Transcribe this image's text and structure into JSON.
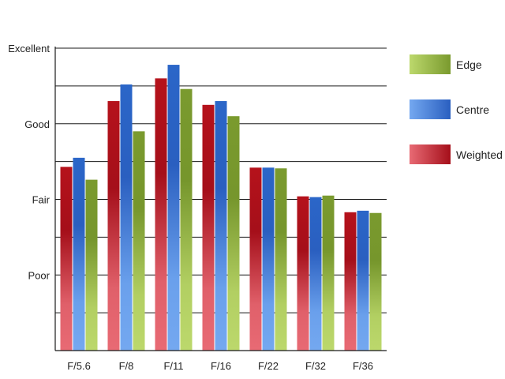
{
  "chart_data": {
    "type": "bar",
    "categories": [
      "F/5.6",
      "F/8",
      "F/11",
      "F/16",
      "F/22",
      "F/32",
      "F/36"
    ],
    "y_tick_labels": [
      "Poor",
      "Fair",
      "Good",
      "Excellent"
    ],
    "y_tick_values": [
      1,
      2,
      3,
      4
    ],
    "ylim": [
      0,
      4
    ],
    "grid": true,
    "legend_position": "right",
    "series": [
      {
        "name": "Weighted",
        "color": "#c0202a",
        "values": [
          2.43,
          3.3,
          3.6,
          3.25,
          2.42,
          2.04,
          1.83
        ]
      },
      {
        "name": "Centre",
        "color": "#2a6acb",
        "values": [
          2.55,
          3.52,
          3.78,
          3.3,
          2.42,
          2.03,
          1.85
        ]
      },
      {
        "name": "Edge",
        "color": "#7a9a2e",
        "values": [
          2.26,
          2.9,
          3.46,
          3.1,
          2.41,
          2.05,
          1.82
        ]
      }
    ],
    "legend": [
      {
        "label": "Edge",
        "color": "#7a9a2e"
      },
      {
        "label": "Centre",
        "color": "#2a6acb"
      },
      {
        "label": "Weighted",
        "color": "#c0202a"
      }
    ]
  }
}
